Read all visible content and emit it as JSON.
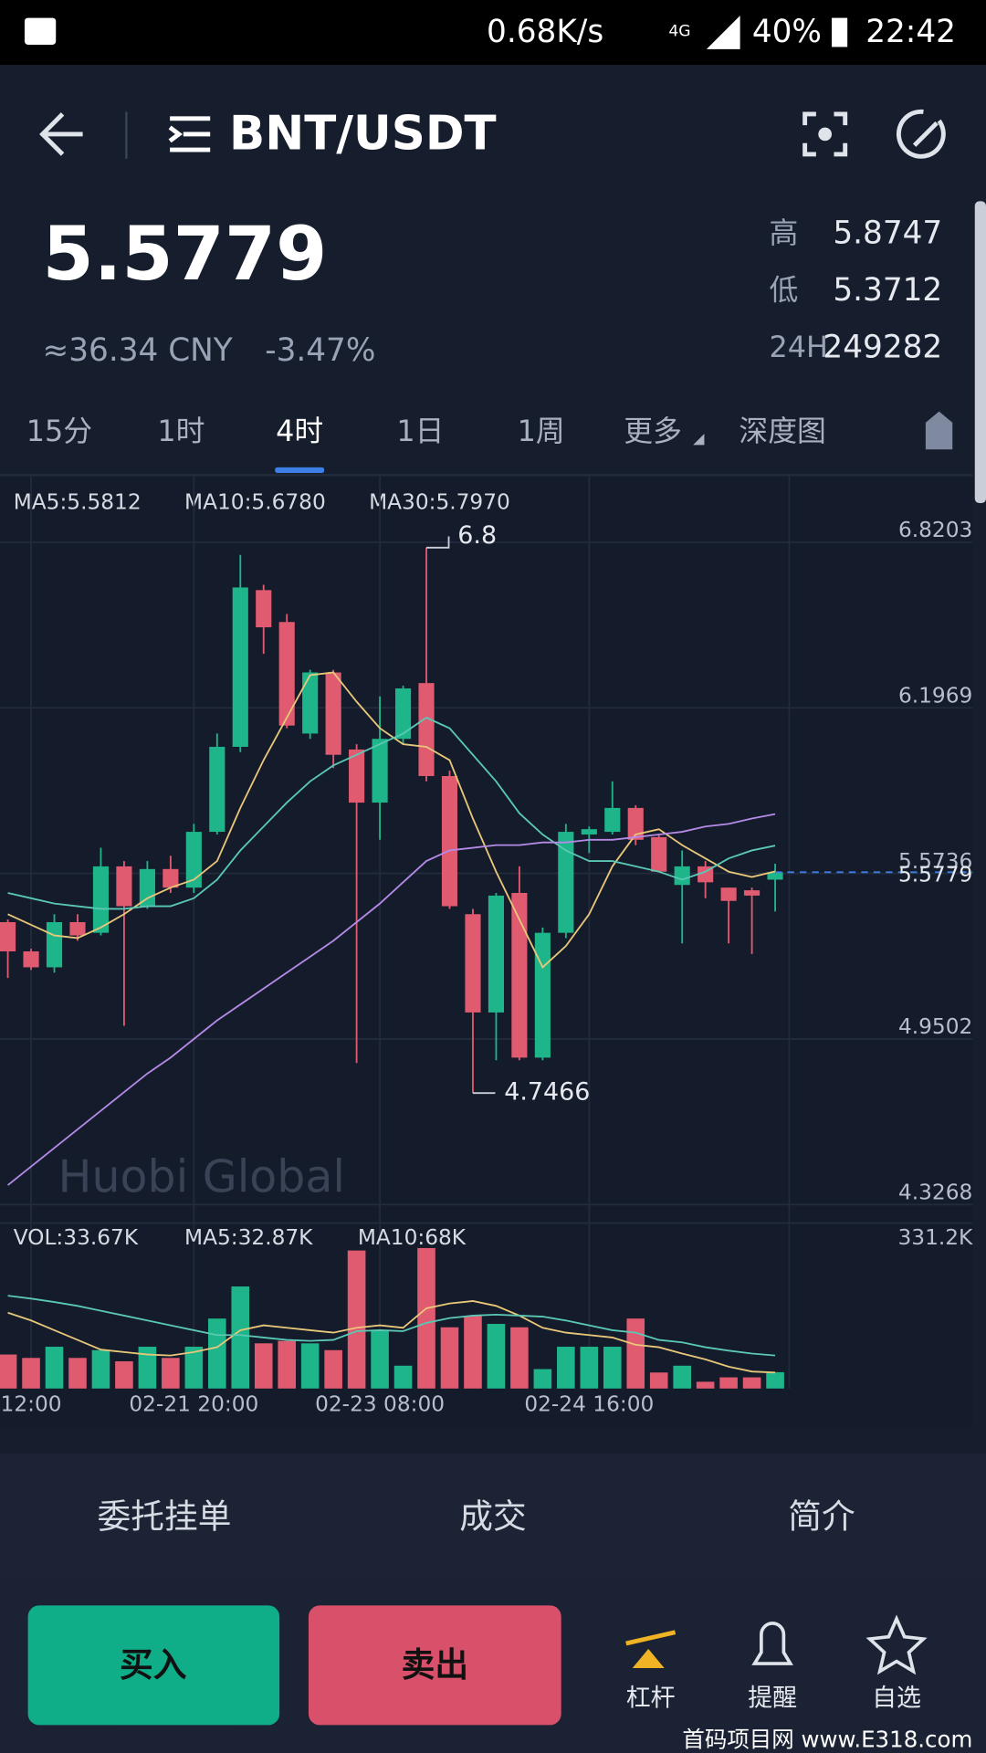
{
  "status_bar": {
    "speed": "0.68K/s",
    "network": "4G",
    "battery": "40%",
    "time": "22:42"
  },
  "header": {
    "pair": "BNT/USDT"
  },
  "ticker": {
    "price": "5.5779",
    "cny": "≈36.34 CNY",
    "change": "-3.47%",
    "stats": [
      {
        "label": "高",
        "value": "5.8747"
      },
      {
        "label": "低",
        "value": "5.3712"
      },
      {
        "label": "24H",
        "value": "249282"
      }
    ]
  },
  "intervals": {
    "items": [
      "15分",
      "1时",
      "4时",
      "1日",
      "1周",
      "更多",
      "深度图"
    ],
    "active": 2
  },
  "chart_data": {
    "type": "candlestick",
    "watermark": "Huobi Global",
    "ma_labels": [
      "MA5:5.5812",
      "MA10:5.6780",
      "MA30:5.7970"
    ],
    "up_color": "#1fb58a",
    "down_color": "#e05a70",
    "categories": [
      null,
      "12:00",
      null,
      null,
      null,
      null,
      null,
      null,
      "02-21 20:00",
      null,
      null,
      null,
      null,
      null,
      null,
      null,
      "02-23 08:00",
      null,
      null,
      null,
      null,
      null,
      null,
      null,
      null,
      "02-24 16:00",
      null,
      null,
      null,
      null,
      null,
      null,
      null,
      null
    ],
    "open": [
      5.39,
      5.28,
      5.22,
      5.39,
      5.35,
      5.6,
      5.45,
      5.59,
      5.52,
      5.73,
      6.05,
      6.64,
      6.52,
      6.1,
      6.33,
      6.04,
      5.84,
      6.08,
      6.29,
      5.94,
      5.42,
      5.05,
      5.5,
      4.88,
      5.35,
      5.72,
      5.73,
      5.82,
      5.71,
      5.53,
      5.6,
      5.52,
      5.51,
      5.55
    ],
    "high": [
      5.4,
      5.29,
      5.42,
      5.42,
      5.67,
      5.62,
      5.62,
      5.64,
      5.76,
      6.1,
      6.7724,
      6.66,
      6.55,
      6.34,
      6.34,
      6.06,
      6.24,
      6.28,
      6.8,
      5.96,
      5.44,
      5.5,
      5.6,
      5.37,
      5.76,
      5.75,
      5.92,
      5.83,
      5.72,
      5.66,
      5.62,
      5.52,
      5.52,
      5.61
    ],
    "low": [
      5.18,
      5.21,
      5.2,
      5.32,
      5.34,
      5.0,
      5.44,
      5.5,
      5.5,
      5.72,
      6.03,
      6.4,
      6.12,
      6.08,
      5.97,
      4.86,
      5.7,
      6.06,
      5.92,
      5.44,
      4.7466,
      4.87,
      4.87,
      4.87,
      5.33,
      5.65,
      5.72,
      5.68,
      5.58,
      5.31,
      5.48,
      5.31,
      5.27,
      5.43
    ],
    "close": [
      5.28,
      5.22,
      5.39,
      5.34,
      5.6,
      5.45,
      5.59,
      5.52,
      5.73,
      6.05,
      6.65,
      6.5,
      6.13,
      6.33,
      6.02,
      5.84,
      6.08,
      6.27,
      5.94,
      5.45,
      5.05,
      5.49,
      4.88,
      5.35,
      5.73,
      5.74,
      5.82,
      5.7,
      5.58,
      5.6,
      5.54,
      5.47,
      5.49,
      5.5779
    ],
    "ma": [
      {
        "color": "#e8c77a",
        "values": [
          5.42,
          5.38,
          5.34,
          5.33,
          5.37,
          5.42,
          5.48,
          5.52,
          5.55,
          5.62,
          5.82,
          6.0,
          6.16,
          6.32,
          6.33,
          6.22,
          6.12,
          6.06,
          6.05,
          6.0,
          5.78,
          5.58,
          5.4,
          5.22,
          5.3,
          5.42,
          5.6,
          5.72,
          5.74,
          5.68,
          5.63,
          5.58,
          5.56,
          5.5812
        ]
      },
      {
        "color": "#5ac8b4",
        "values": [
          5.5,
          5.48,
          5.46,
          5.45,
          5.44,
          5.44,
          5.45,
          5.45,
          5.48,
          5.55,
          5.66,
          5.75,
          5.84,
          5.92,
          5.98,
          6.02,
          6.06,
          6.1,
          6.16,
          6.12,
          6.02,
          5.92,
          5.8,
          5.72,
          5.66,
          5.62,
          5.62,
          5.6,
          5.58,
          5.55,
          5.58,
          5.63,
          5.66,
          5.678
        ]
      },
      {
        "color": "#b48ae6",
        "values": [
          4.4,
          4.47,
          4.54,
          4.61,
          4.68,
          4.75,
          4.82,
          4.88,
          4.95,
          5.02,
          5.08,
          5.14,
          5.2,
          5.26,
          5.32,
          5.39,
          5.46,
          5.54,
          5.62,
          5.66,
          5.67,
          5.68,
          5.68,
          5.69,
          5.69,
          5.7,
          5.7,
          5.71,
          5.72,
          5.73,
          5.75,
          5.76,
          5.78,
          5.797
        ]
      }
    ],
    "ylim": [
      4.274,
      6.8834
    ],
    "yticks": [
      6.8203,
      6.1969,
      5.5736,
      4.9502,
      4.3268
    ],
    "grid": true,
    "volume": {
      "labels": [
        "VOL:33.67K",
        "MA5:32.87K",
        "MA10:68K"
      ],
      "values": [
        70,
        63,
        86,
        63,
        79,
        56,
        86,
        63,
        86,
        144,
        210,
        93,
        98,
        93,
        79,
        284,
        121,
        47,
        289,
        126,
        149,
        133,
        126,
        40,
        86,
        86,
        86,
        144,
        33,
        47,
        14,
        23,
        23,
        33.67
      ],
      "ma": [
        {
          "color": "#e8c77a",
          "values": [
            156,
            140,
            120,
            100,
            80,
            75,
            70,
            68,
            75,
            85,
            120,
            130,
            125,
            120,
            115,
            125,
            130,
            125,
            165,
            175,
            180,
            170,
            150,
            125,
            115,
            110,
            105,
            90,
            85,
            72,
            60,
            45,
            35,
            32.87
          ]
        },
        {
          "color": "#5ac8b4",
          "values": [
            191,
            185,
            178,
            170,
            160,
            150,
            140,
            130,
            120,
            110,
            110,
            105,
            100,
            98,
            100,
            118,
            120,
            118,
            135,
            145,
            150,
            152,
            150,
            148,
            140,
            130,
            120,
            115,
            100,
            95,
            85,
            78,
            72,
            68
          ]
        }
      ],
      "ylim": [
        0,
        331.2
      ],
      "yticks": [
        {
          "value": 331.2,
          "label": "331.2K"
        }
      ]
    }
  },
  "detail_tabs": [
    "委托挂单",
    "成交",
    "简介"
  ],
  "actions": {
    "buy": "买入",
    "sell": "卖出",
    "tools": [
      "杠杆",
      "提醒",
      "自选"
    ]
  },
  "watermark": "首码项目网 www.E318.com"
}
